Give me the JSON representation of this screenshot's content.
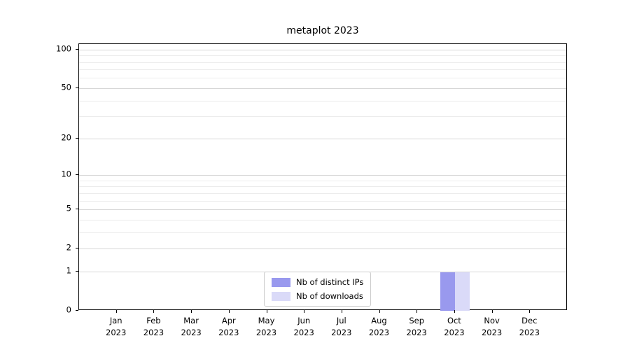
{
  "chart_data": {
    "type": "bar",
    "title": "metaplot 2023",
    "categories": [
      "Jan",
      "Feb",
      "Mar",
      "Apr",
      "May",
      "Jun",
      "Jul",
      "Aug",
      "Sep",
      "Oct",
      "Nov",
      "Dec"
    ],
    "year_label": "2023",
    "series": [
      {
        "name": "Nb of distinct IPs",
        "color": "#9999ee",
        "values": [
          0,
          0,
          0,
          0,
          0,
          0,
          0,
          0,
          0,
          1,
          0,
          0
        ]
      },
      {
        "name": "Nb of downloads",
        "color": "#dadaf8",
        "values": [
          0,
          0,
          0,
          0,
          0,
          0,
          0,
          0,
          0,
          1,
          0,
          0
        ]
      }
    ],
    "yscale": "log1p",
    "ylim": [
      0,
      110
    ],
    "y_major_ticks": [
      0,
      1,
      2,
      5,
      10,
      20,
      50,
      100
    ],
    "y_minor_ticks": [
      3,
      4,
      6,
      7,
      8,
      9,
      30,
      40,
      60,
      70,
      80,
      90
    ],
    "grid": "horizontal",
    "legend_position": "lower center"
  }
}
